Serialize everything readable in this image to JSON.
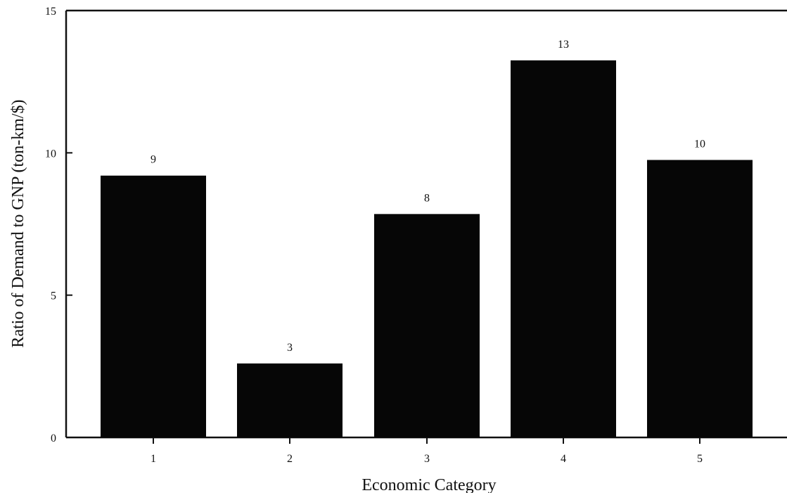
{
  "chart_data": {
    "type": "bar",
    "title": "",
    "xlabel": "Economic Category",
    "ylabel": "Ratio of Demand to GNP (ton-km/$)",
    "categories": [
      "1",
      "2",
      "3",
      "4",
      "5"
    ],
    "values": [
      9.2,
      2.6,
      7.85,
      13.25,
      9.75
    ],
    "data_labels": [
      "9",
      "3",
      "8",
      "13",
      "10"
    ],
    "ylim": [
      0,
      15
    ],
    "yticks": [
      0,
      5,
      10,
      15
    ],
    "grid": false,
    "legend": "none",
    "bar_color": "#060606"
  }
}
